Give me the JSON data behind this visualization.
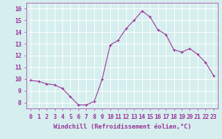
{
  "x": [
    0,
    1,
    2,
    3,
    4,
    5,
    6,
    7,
    8,
    9,
    10,
    11,
    12,
    13,
    14,
    15,
    16,
    17,
    18,
    19,
    20,
    21,
    22,
    23
  ],
  "y": [
    9.9,
    9.8,
    9.6,
    9.5,
    9.2,
    8.5,
    7.8,
    7.8,
    8.1,
    10.0,
    12.9,
    13.3,
    14.3,
    15.0,
    15.8,
    15.3,
    14.2,
    13.8,
    12.5,
    12.3,
    12.6,
    12.1,
    11.4,
    10.3
  ],
  "line_color": "#993399",
  "marker": "+",
  "marker_size": 3,
  "bg_color": "#d6eeee",
  "grid_color": "#ffffff",
  "xlabel": "Windchill (Refroidissement éolien,°C)",
  "xlabel_fontsize": 6.5,
  "ylabel_ticks": [
    8,
    9,
    10,
    11,
    12,
    13,
    14,
    15,
    16
  ],
  "xtick_labels": [
    "0",
    "1",
    "2",
    "3",
    "4",
    "5",
    "6",
    "7",
    "8",
    "9",
    "10",
    "11",
    "12",
    "13",
    "14",
    "15",
    "16",
    "17",
    "18",
    "19",
    "20",
    "21",
    "22",
    "23"
  ],
  "ylim": [
    7.5,
    16.5
  ],
  "xlim": [
    -0.5,
    23.5
  ],
  "tick_fontsize": 6,
  "text_color": "#993399",
  "linewidth": 0.8,
  "markeredgewidth": 0.8
}
